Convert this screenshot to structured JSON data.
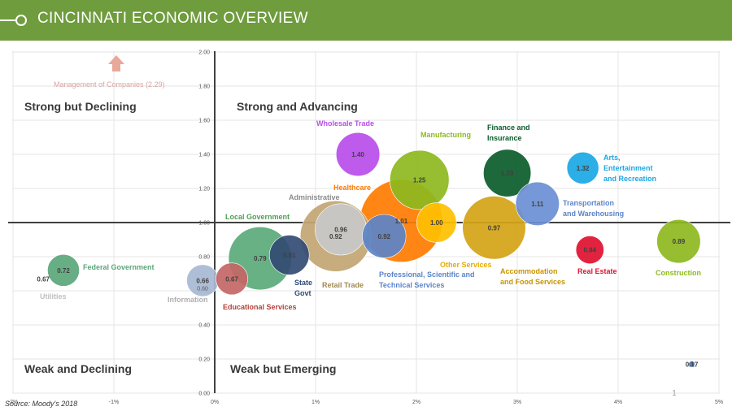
{
  "header": {
    "title": "CINCINNATI ECONOMIC OVERVIEW"
  },
  "source": "Source: Moody's 2018",
  "page_number": "1",
  "colors": {
    "header": "#6f9c3d",
    "axis": "#404040",
    "grid": "#e6e6e6"
  },
  "chart_data": {
    "type": "bubble",
    "title": "",
    "xlabel": "",
    "ylabel": "",
    "xlim": [
      -2,
      5
    ],
    "ylim": [
      0,
      2
    ],
    "x_ticks": [
      {
        "v": -2,
        "label": "-2%"
      },
      {
        "v": -1,
        "label": "-1%"
      },
      {
        "v": 0,
        "label": "0%"
      },
      {
        "v": 1,
        "label": "1%"
      },
      {
        "v": 2,
        "label": "2%"
      },
      {
        "v": 3,
        "label": "3%"
      },
      {
        "v": 4,
        "label": "4%"
      },
      {
        "v": 5,
        "label": "5%"
      }
    ],
    "y_ticks": [
      "0.00",
      "0.20",
      "0.40",
      "0.60",
      "0.80",
      "1.00",
      "1.20",
      "1.40",
      "1.60",
      "1.80",
      "2.00"
    ],
    "grid": true,
    "quadrants": [
      "Strong but Declining",
      "Strong and Advancing",
      "Weak and Declining",
      "Weak but Emerging"
    ],
    "offchart": {
      "label": "Management of Companies (2.29)",
      "x": -1.0,
      "color": "#d9a3a3"
    },
    "points": [
      {
        "name": "Utilities",
        "x": -1.7,
        "y": 0.67,
        "value": "0.67",
        "size": 0,
        "color": "#bfbfbf",
        "name_color": "#bfbfbf"
      },
      {
        "name": "Federal Government",
        "x": -1.5,
        "y": 0.72,
        "value": "0.72",
        "size": 0.2,
        "color": "#5aa77a",
        "name_color": "#5aa77a"
      },
      {
        "name": "Information",
        "x": -0.12,
        "y": 0.66,
        "value": "0.66",
        "size": 0.2,
        "color": "#a7b8d2",
        "name_color": "#b0b0b0",
        "extra": "0.60"
      },
      {
        "name": "Educational Services",
        "x": 0.17,
        "y": 0.67,
        "value": "0.67",
        "size": 0.2,
        "color": "#c46666",
        "name_color": "#b2403a"
      },
      {
        "name": "Local Government",
        "x": 0.45,
        "y": 0.79,
        "value": "0.79",
        "size": 0.6,
        "color": "#5aaa7a",
        "name_color": "#4e9e54"
      },
      {
        "name": "State Govt",
        "x": 0.74,
        "y": 0.81,
        "value": "0.81",
        "size": 0.3,
        "color": "#334b73",
        "name_color": "#2e4a7a"
      },
      {
        "name": "Retail Trade",
        "x": 1.2,
        "y": 0.92,
        "value": "0.92",
        "size": 0.7,
        "color": "#c2a572",
        "name_color": "#a08a50"
      },
      {
        "name": "Administrative",
        "x": 1.25,
        "y": 0.96,
        "value": "0.96",
        "size": 0.45,
        "color": "#c8c8c8",
        "name_color": "#8c8c8c"
      },
      {
        "name": "Professional, Scientific and Technical Services",
        "x": 1.68,
        "y": 0.92,
        "value": "0.92",
        "size": 0.35,
        "color": "#5b84c9",
        "name_color": "#5b84c9"
      },
      {
        "name": "Healthcare",
        "x": 1.85,
        "y": 1.01,
        "value": "1.01",
        "size": 0.85,
        "color": "#ff7b00",
        "name_color": "#ff7b00"
      },
      {
        "name": "Manufacturing",
        "x": 2.03,
        "y": 1.25,
        "value": "1.25",
        "size": 0.55,
        "color": "#8db91e",
        "name_color": "#8db91e"
      },
      {
        "name": "Other Services",
        "x": 2.2,
        "y": 1.0,
        "value": "1.00",
        "size": 0.3,
        "color": "#ffc000",
        "name_color": "#e6ac00"
      },
      {
        "name": "Wholesale Trade",
        "x": 1.42,
        "y": 1.4,
        "value": "1.40",
        "size": 0.35,
        "color": "#b84dea",
        "name_color": "#b84dea"
      },
      {
        "name": "Accommodation and Food Services",
        "x": 2.77,
        "y": 0.97,
        "value": "0.97",
        "size": 0.6,
        "color": "#d4a315",
        "name_color": "#c89400"
      },
      {
        "name": "Finance and Insurance",
        "x": 2.9,
        "y": 1.29,
        "value": "1.29",
        "size": 0.4,
        "color": "#0a5c2a",
        "name_color": "#0a5c2a"
      },
      {
        "name": "Transportation and Warehousing",
        "x": 3.2,
        "y": 1.11,
        "value": "1.11",
        "size": 0.35,
        "color": "#6a8fd5",
        "name_color": "#5b84c9"
      },
      {
        "name": "Arts, Entertainment and Recreation",
        "x": 3.65,
        "y": 1.32,
        "value": "1.32",
        "size": 0.2,
        "color": "#1aa7e4",
        "name_color": "#1aa7e4"
      },
      {
        "name": "Real Estate",
        "x": 3.72,
        "y": 0.84,
        "value": "0.84",
        "size": 0.15,
        "color": "#e0102f",
        "name_color": "#e0102f"
      },
      {
        "name": "Construction",
        "x": 4.6,
        "y": 0.89,
        "value": "0.89",
        "size": 0.35,
        "color": "#8db91e",
        "name_color": "#8db91e"
      },
      {
        "name": "",
        "x": 4.73,
        "y": 0.17,
        "value": "0.17",
        "size": 0,
        "color": "#4f7fbf",
        "name_color": "#4f7fbf"
      }
    ]
  }
}
